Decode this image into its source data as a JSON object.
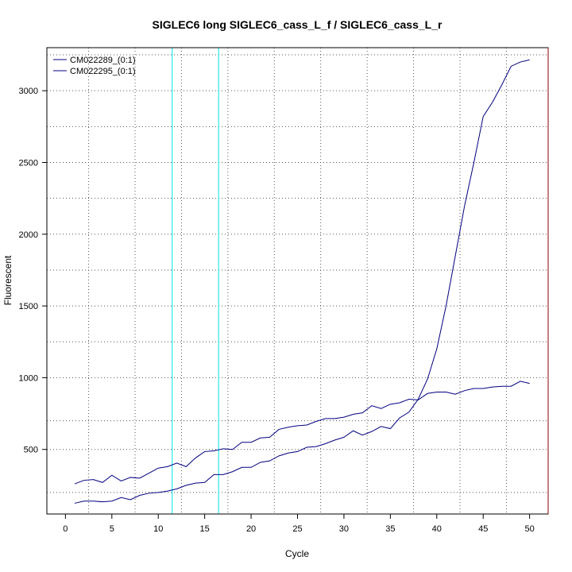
{
  "chart_data": {
    "type": "line",
    "title": "SIGLEC6 long SIGLEC6_cass_L_f / SIGLEC6_cass_L_r",
    "xlabel": "Cycle",
    "ylabel": "Fluorescent",
    "xlim": [
      -2,
      52
    ],
    "ylim": [
      50,
      3300
    ],
    "x_ticks": [
      0,
      5,
      10,
      15,
      20,
      25,
      30,
      35,
      40,
      45,
      50
    ],
    "y_ticks": [
      500,
      1000,
      1500,
      2000,
      2500,
      3000
    ],
    "x_grid": [
      2.5,
      7.5,
      12.5,
      17.5,
      22.5,
      27.5,
      32.5,
      37.5,
      42.5,
      47.5
    ],
    "y_grid": [
      200,
      500,
      700,
      1000,
      1250,
      1500,
      1750,
      2000,
      2250,
      2500,
      2750,
      3000,
      3250
    ],
    "threshold_lines_x": [
      11.5,
      16.5
    ],
    "threshold_color": "#00e5ee",
    "line_color": "#000080",
    "grid": true,
    "legend": "top-left",
    "x": [
      1,
      2,
      3,
      4,
      5,
      6,
      7,
      8,
      9,
      10,
      11,
      12,
      13,
      14,
      15,
      16,
      17,
      18,
      19,
      20,
      21,
      22,
      23,
      24,
      25,
      26,
      27,
      28,
      29,
      30,
      31,
      32,
      33,
      34,
      35,
      36,
      37,
      38,
      39,
      40,
      41,
      42,
      43,
      44,
      45,
      46,
      47,
      48,
      49,
      50
    ],
    "series": [
      {
        "name": "CM022289_(0:1)",
        "values": [
          260,
          285,
          290,
          270,
          320,
          280,
          305,
          300,
          335,
          370,
          380,
          405,
          380,
          440,
          485,
          490,
          505,
          500,
          550,
          550,
          580,
          585,
          640,
          655,
          665,
          670,
          695,
          715,
          715,
          725,
          745,
          755,
          805,
          785,
          815,
          825,
          850,
          845,
          890,
          900,
          900,
          885,
          910,
          925,
          925,
          935,
          940,
          940,
          975,
          960
        ]
      },
      {
        "name": "CM022295_(0:1)",
        "values": [
          125,
          140,
          140,
          135,
          140,
          165,
          150,
          180,
          195,
          200,
          210,
          225,
          250,
          265,
          270,
          325,
          325,
          345,
          375,
          375,
          410,
          420,
          455,
          475,
          485,
          515,
          520,
          540,
          565,
          585,
          630,
          600,
          625,
          660,
          645,
          720,
          760,
          850,
          990,
          1200,
          1500,
          1850,
          2200,
          2500,
          2820,
          2920,
          3040,
          3170,
          3200,
          3215
        ]
      }
    ]
  }
}
